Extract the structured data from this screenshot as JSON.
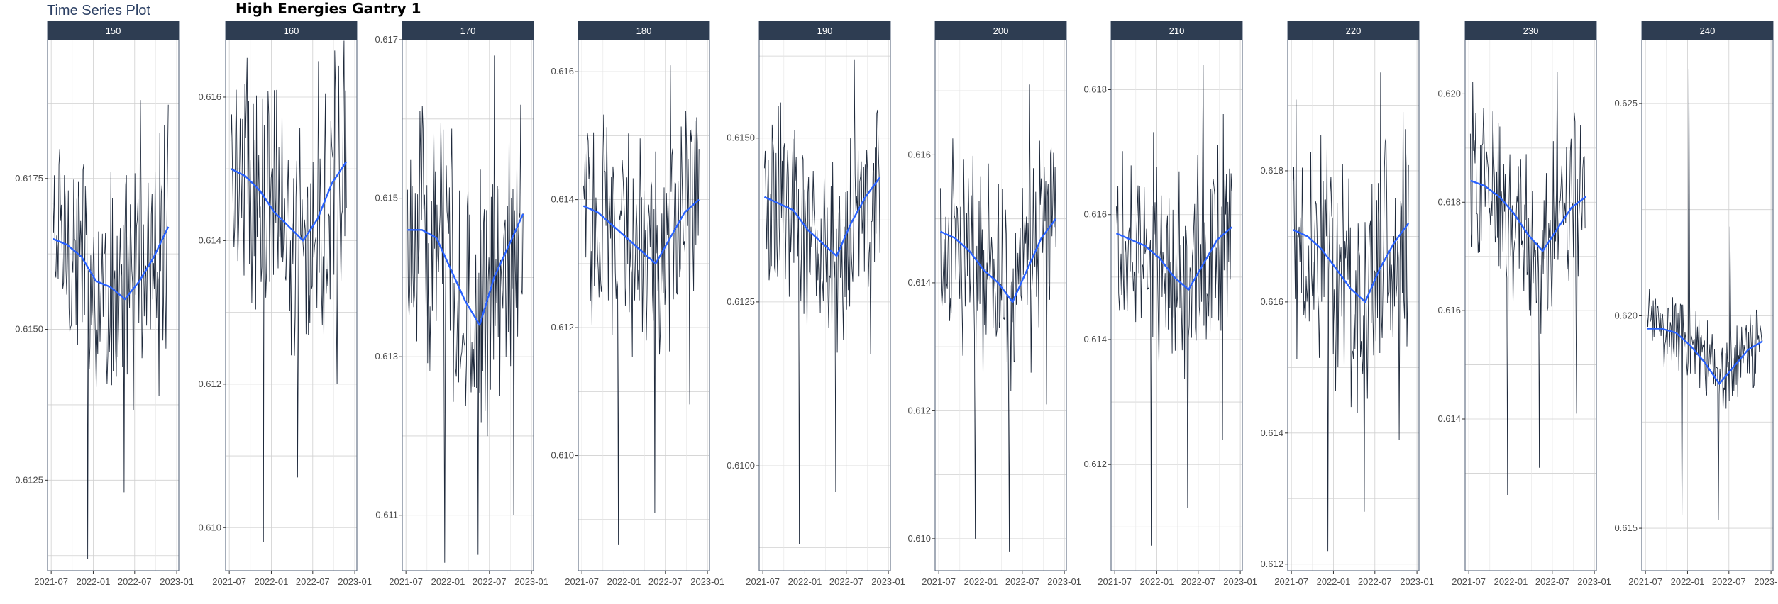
{
  "header": {
    "plot_title": "Time Series Plot",
    "main_title": "High Energies Gantry 1"
  },
  "colors": {
    "strip_bg": "#2e3d52",
    "series_line": "#1f2a3c",
    "smooth_line": "#2962ff",
    "grid": "#d0d0d0",
    "panel_border": "#4a5a70"
  },
  "chart_data": {
    "type": "line",
    "layout": "facet_wrap",
    "x_ticks": [
      "2021-07",
      "2022-01",
      "2022-07",
      "2023-01"
    ],
    "x_range": [
      "2021-06-15",
      "2023-01-10"
    ],
    "panels": [
      {
        "label": "150",
        "ylim": [
          0.611,
          0.6198
        ],
        "yticks": [
          0.6125,
          0.615,
          0.6175
        ],
        "ytick_labels": [
          "0.6125",
          "0.6150",
          "0.6175"
        ],
        "smooth": [
          0.6165,
          0.6164,
          0.6162,
          0.6158,
          0.6157,
          0.6155,
          0.6158,
          0.6162,
          0.6167
        ],
        "series": {
          "center": 0.6163,
          "spread": 0.0024,
          "outliers": [
            [
              0.3,
              0.6112
            ],
            [
              0.62,
              0.6123
            ],
            [
              0.92,
              0.6139
            ],
            [
              0.76,
              0.6188
            ]
          ]
        }
      },
      {
        "label": "160",
        "ylim": [
          0.6094,
          0.6168
        ],
        "yticks": [
          0.61,
          0.612,
          0.614,
          0.616
        ],
        "ytick_labels": [
          "0.610",
          "0.612",
          "0.614",
          "0.616"
        ],
        "smooth": [
          0.615,
          0.6149,
          0.6147,
          0.6144,
          0.6142,
          0.614,
          0.6143,
          0.6148,
          0.6151
        ],
        "series": {
          "center": 0.6148,
          "spread": 0.0022,
          "outliers": [
            [
              0.28,
              0.6098
            ],
            [
              0.58,
              0.6107
            ],
            [
              0.92,
              0.612
            ],
            [
              0.76,
              0.6165
            ]
          ]
        }
      },
      {
        "label": "170",
        "ylim": [
          0.6103,
          0.617
        ],
        "yticks": [
          0.611,
          0.613,
          0.615,
          0.617
        ],
        "ytick_labels": [
          "0.611",
          "0.613",
          "0.615",
          "0.617"
        ],
        "smooth": [
          0.6146,
          0.6146,
          0.6145,
          0.6141,
          0.6137,
          0.6134,
          0.614,
          0.6144,
          0.6148
        ],
        "series": {
          "center": 0.6145,
          "spread": 0.002,
          "outliers": [
            [
              0.32,
              0.6104
            ],
            [
              0.61,
              0.6105
            ],
            [
              0.92,
              0.611
            ],
            [
              0.75,
              0.6168
            ]
          ]
        }
      },
      {
        "label": "180",
        "ylim": [
          0.6082,
          0.6165
        ],
        "yticks": [
          0.61,
          0.612,
          0.614,
          0.616
        ],
        "ytick_labels": [
          "0.610",
          "0.612",
          "0.614",
          "0.616"
        ],
        "smooth": [
          0.6139,
          0.6138,
          0.6136,
          0.6134,
          0.6132,
          0.613,
          0.6134,
          0.6138,
          0.614
        ],
        "series": {
          "center": 0.6138,
          "spread": 0.002,
          "outliers": [
            [
              0.3,
              0.6086
            ],
            [
              0.62,
              0.6091
            ],
            [
              0.92,
              0.6108
            ],
            [
              0.75,
              0.6161
            ]
          ]
        }
      },
      {
        "label": "190",
        "ylim": [
          0.6084,
          0.6165
        ],
        "yticks": [
          0.61,
          0.6125,
          0.615
        ],
        "ytick_labels": [
          "0.6100",
          "0.6125",
          "0.6150"
        ],
        "smooth": [
          0.6141,
          0.614,
          0.6139,
          0.6136,
          0.6134,
          0.6132,
          0.6137,
          0.6141,
          0.6144
        ],
        "series": {
          "center": 0.614,
          "spread": 0.0018,
          "outliers": [
            [
              0.3,
              0.6088
            ],
            [
              0.62,
              0.6096
            ],
            [
              0.92,
              0.6117
            ],
            [
              0.78,
              0.6162
            ]
          ]
        }
      },
      {
        "label": "200",
        "ylim": [
          0.6095,
          0.6178
        ],
        "yticks": [
          0.61,
          0.612,
          0.614,
          0.616
        ],
        "ytick_labels": [
          "0.610",
          "0.612",
          "0.614",
          "0.616"
        ],
        "smooth": [
          0.6148,
          0.6147,
          0.6145,
          0.6142,
          0.614,
          0.6137,
          0.6142,
          0.6147,
          0.615
        ],
        "series": {
          "center": 0.6146,
          "spread": 0.002,
          "outliers": [
            [
              0.3,
              0.61
            ],
            [
              0.6,
              0.6098
            ],
            [
              0.92,
              0.6121
            ],
            [
              0.77,
              0.6171
            ]
          ]
        }
      },
      {
        "label": "210",
        "ylim": [
          0.6103,
          0.6188
        ],
        "yticks": [
          0.612,
          0.614,
          0.616,
          0.618
        ],
        "ytick_labels": [
          "0.612",
          "0.614",
          "0.616",
          "0.618"
        ],
        "smooth": [
          0.6157,
          0.6156,
          0.6155,
          0.6153,
          0.615,
          0.6148,
          0.6152,
          0.6156,
          0.6158
        ],
        "series": {
          "center": 0.6155,
          "spread": 0.002,
          "outliers": [
            [
              0.3,
              0.6107
            ],
            [
              0.62,
              0.6113
            ],
            [
              0.92,
              0.6124
            ],
            [
              0.75,
              0.6184
            ]
          ]
        }
      },
      {
        "label": "220",
        "ylim": [
          0.6119,
          0.62
        ],
        "yticks": [
          0.612,
          0.614,
          0.616,
          0.618
        ],
        "ytick_labels": [
          "0.612",
          "0.614",
          "0.616",
          "0.618"
        ],
        "smooth": [
          0.6171,
          0.617,
          0.6168,
          0.6165,
          0.6162,
          0.616,
          0.6165,
          0.6169,
          0.6172
        ],
        "series": {
          "center": 0.617,
          "spread": 0.0022,
          "outliers": [
            [
              0.3,
              0.6122
            ],
            [
              0.62,
              0.6128
            ],
            [
              0.92,
              0.6139
            ],
            [
              0.76,
              0.6195
            ]
          ]
        }
      },
      {
        "label": "230",
        "ylim": [
          0.6112,
          0.621
        ],
        "yticks": [
          0.614,
          0.616,
          0.618,
          0.62
        ],
        "ytick_labels": [
          "0.614",
          "0.616",
          "0.618",
          "0.620"
        ],
        "smooth": [
          0.6184,
          0.6183,
          0.6181,
          0.6178,
          0.6174,
          0.6171,
          0.6175,
          0.6179,
          0.6181
        ],
        "series": {
          "center": 0.6181,
          "spread": 0.002,
          "outliers": [
            [
              0.32,
              0.6126
            ],
            [
              0.6,
              0.6131
            ],
            [
              0.92,
              0.6141
            ],
            [
              0.75,
              0.6204
            ]
          ]
        }
      },
      {
        "label": "240",
        "ylim": [
          0.614,
          0.6265
        ],
        "yticks": [
          0.615,
          0.62,
          0.625
        ],
        "ytick_labels": [
          "0.615",
          "0.620",
          "0.625"
        ],
        "smooth": [
          0.6197,
          0.6197,
          0.6196,
          0.6193,
          0.6189,
          0.6184,
          0.6188,
          0.6192,
          0.6194
        ],
        "series": {
          "center": 0.6194,
          "spread": 0.0012,
          "outliers": [
            [
              0.3,
              0.6153
            ],
            [
              0.62,
              0.6152
            ],
            [
              0.92,
              0.6183
            ],
            [
              0.36,
              0.6258
            ],
            [
              0.72,
              0.6221
            ]
          ]
        }
      }
    ]
  }
}
